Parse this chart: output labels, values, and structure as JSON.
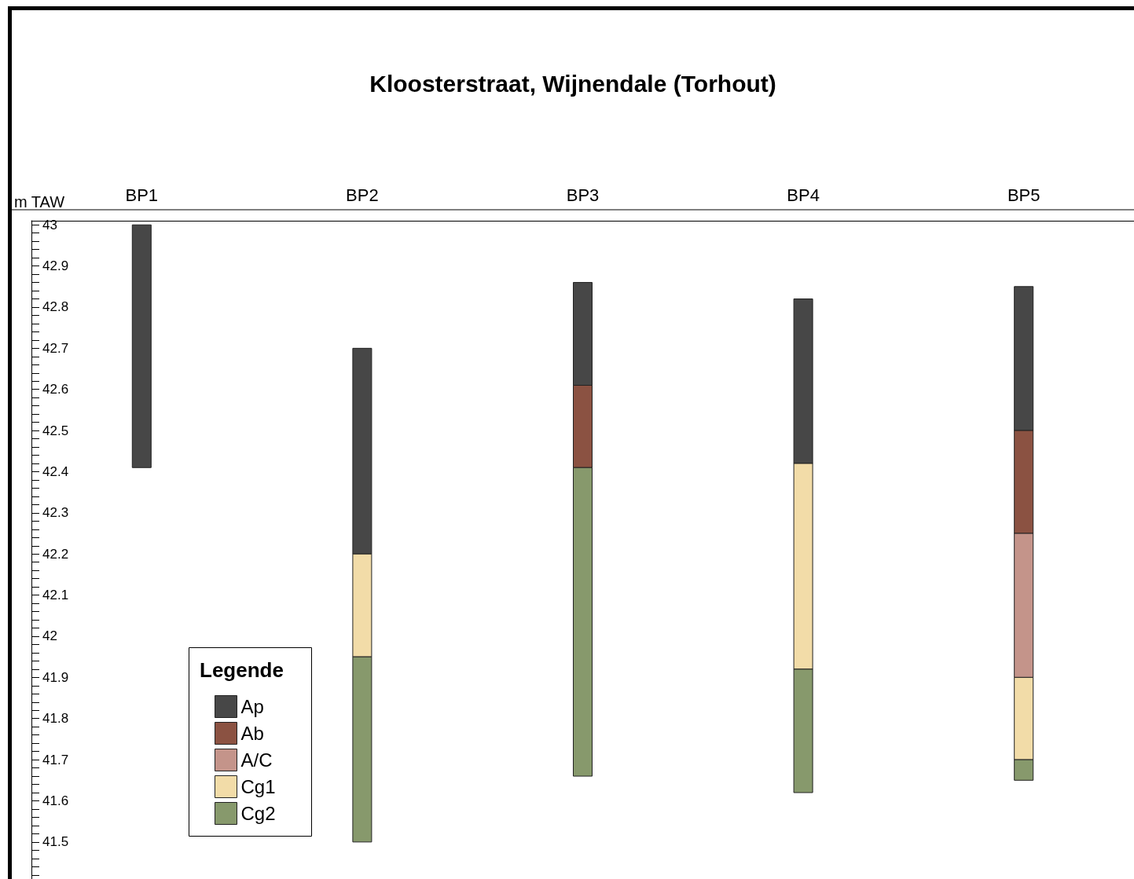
{
  "chart_data": {
    "type": "bar",
    "title": "Kloosterstraat, Wijnendale (Torhout)",
    "ylabel": "m TAW",
    "legend_title": "Legende",
    "legend": "bottom left",
    "categories": [
      "BP1",
      "BP2",
      "BP3",
      "BP4",
      "BP5"
    ],
    "series": [
      {
        "name": "Ap",
        "color": "#474747",
        "base": [
          42.41,
          42.2,
          42.61,
          42.42,
          42.5
        ],
        "values": [
          0.59,
          0.5,
          0.25,
          0.4,
          0.35
        ]
      },
      {
        "name": "Ab",
        "color": "#8b5242",
        "base": [
          null,
          null,
          42.41,
          null,
          42.25
        ],
        "values": [
          null,
          null,
          0.2,
          null,
          0.25
        ]
      },
      {
        "name": "A/C",
        "color": "#c4948a",
        "base": [
          null,
          null,
          null,
          null,
          41.9
        ],
        "values": [
          null,
          null,
          null,
          null,
          0.35
        ]
      },
      {
        "name": "Cg1",
        "color": "#f2dca8",
        "base": [
          null,
          41.95,
          null,
          41.92,
          41.7
        ],
        "values": [
          null,
          0.25,
          null,
          0.5,
          0.2
        ]
      },
      {
        "name": "Cg2",
        "color": "#87996c",
        "base": [
          null,
          41.5,
          41.66,
          41.62,
          41.65
        ],
        "values": [
          null,
          0.45,
          0.75,
          0.3,
          0.05
        ]
      }
    ],
    "ylim": [
      41.41,
      43.01
    ],
    "yticks": [
      41.5,
      41.6,
      41.7,
      41.8,
      41.9,
      42,
      42.1,
      42.2,
      42.3,
      42.4,
      42.5,
      42.6,
      42.7,
      42.8,
      42.9,
      43,
      {
        "value": 41.42,
        "label": null
      },
      {
        "value": 41.44,
        "label": null
      },
      {
        "value": 41.46,
        "label": null
      },
      {
        "value": 41.48,
        "label": null
      },
      {
        "value": 41.52,
        "label": null
      },
      {
        "value": 41.54,
        "label": null
      },
      {
        "value": 41.56,
        "label": null
      },
      {
        "value": 41.58,
        "label": null
      },
      {
        "value": 41.62,
        "label": null
      },
      {
        "value": 41.64,
        "label": null
      },
      {
        "value": 41.66,
        "label": null
      },
      {
        "value": 41.68,
        "label": null
      },
      {
        "value": 41.72,
        "label": null
      },
      {
        "value": 41.74,
        "label": null
      },
      {
        "value": 41.76,
        "label": null
      },
      {
        "value": 41.78,
        "label": null
      },
      {
        "value": 41.82,
        "label": null
      },
      {
        "value": 41.84,
        "label": null
      },
      {
        "value": 41.86,
        "label": null
      },
      {
        "value": 41.88,
        "label": null
      },
      {
        "value": 41.92,
        "label": null
      },
      {
        "value": 41.94,
        "label": null
      },
      {
        "value": 41.96,
        "label": null
      },
      {
        "value": 41.98,
        "label": null
      },
      {
        "value": 42.02,
        "label": null
      },
      {
        "value": 42.04,
        "label": null
      },
      {
        "value": 42.06,
        "label": null
      },
      {
        "value": 42.08,
        "label": null
      },
      {
        "value": 42.12,
        "label": null
      },
      {
        "value": 42.14,
        "label": null
      },
      {
        "value": 42.16,
        "label": null
      },
      {
        "value": 42.18,
        "label": null
      },
      {
        "value": 42.22,
        "label": null
      },
      {
        "value": 42.24,
        "label": null
      },
      {
        "value": 42.26,
        "label": null
      },
      {
        "value": 42.28,
        "label": null
      },
      {
        "value": 42.32,
        "label": null
      },
      {
        "value": 42.34,
        "label": null
      },
      {
        "value": 42.36,
        "label": null
      },
      {
        "value": 42.38,
        "label": null
      },
      {
        "value": 42.42,
        "label": null
      },
      {
        "value": 42.44,
        "label": null
      },
      {
        "value": 42.46,
        "label": null
      },
      {
        "value": 42.48,
        "label": null
      },
      {
        "value": 42.52,
        "label": null
      },
      {
        "value": 42.54,
        "label": null
      },
      {
        "value": 42.56,
        "label": null
      },
      {
        "value": 42.58,
        "label": null
      },
      {
        "value": 42.62,
        "label": null
      },
      {
        "value": 42.64,
        "label": null
      },
      {
        "value": 42.66,
        "label": null
      },
      {
        "value": 42.68,
        "label": null
      },
      {
        "value": 42.72,
        "label": null
      },
      {
        "value": 42.74,
        "label": null
      },
      {
        "value": 42.76,
        "label": null
      },
      {
        "value": 42.78,
        "label": null
      },
      {
        "value": 42.82,
        "label": null
      },
      {
        "value": 42.84,
        "label": null
      },
      {
        "value": 42.86,
        "label": null
      },
      {
        "value": 42.88,
        "label": null
      },
      {
        "value": 42.92,
        "label": null
      },
      {
        "value": 42.94,
        "label": null
      },
      {
        "value": 42.96,
        "label": null
      },
      {
        "value": 42.98,
        "label": null
      }
    ],
    "grid": false
  }
}
